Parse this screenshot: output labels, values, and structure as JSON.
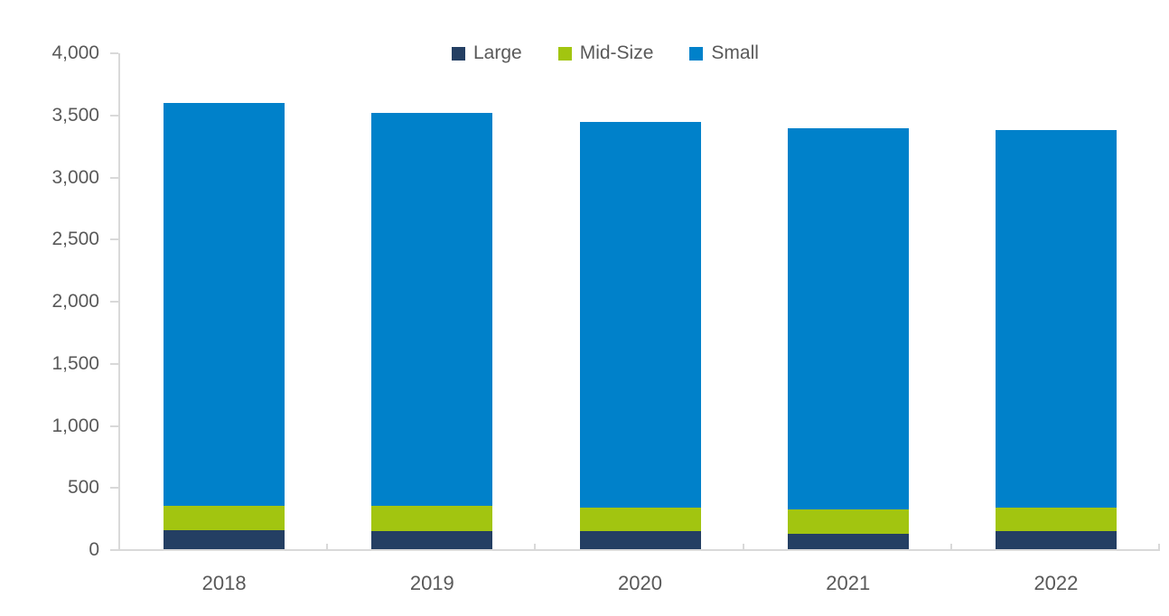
{
  "chart_data": {
    "type": "bar",
    "stacked": true,
    "title": "",
    "xlabel": "",
    "ylabel": "",
    "categories": [
      "2018",
      "2019",
      "2020",
      "2021",
      "2022"
    ],
    "series": [
      {
        "name": "Large",
        "color": "#243f63",
        "values": [
          160,
          155,
          155,
          130,
          155
        ]
      },
      {
        "name": "Mid-Size",
        "color": "#a2c510",
        "values": [
          200,
          200,
          185,
          200,
          190
        ]
      },
      {
        "name": "Small",
        "color": "#0081ca",
        "values": [
          3240,
          3165,
          3105,
          3070,
          3040
        ]
      }
    ],
    "totals": [
      3600,
      3520,
      3445,
      3400,
      3385
    ],
    "ylim": [
      0,
      4000
    ],
    "ytick_interval": 500,
    "yticks": [
      0,
      500,
      1000,
      1500,
      2000,
      2500,
      3000,
      3500,
      4000
    ],
    "ytick_labels": [
      "0",
      "500",
      "1,000",
      "1,500",
      "2,000",
      "2,500",
      "3,000",
      "3,500",
      "4,000"
    ],
    "legend_position": "top",
    "legend_items": [
      "Large",
      "Mid-Size",
      "Small"
    ],
    "grid": false,
    "axis_color": "#d9d9d9",
    "text_color": "#595959",
    "background_color": "#ffffff"
  }
}
